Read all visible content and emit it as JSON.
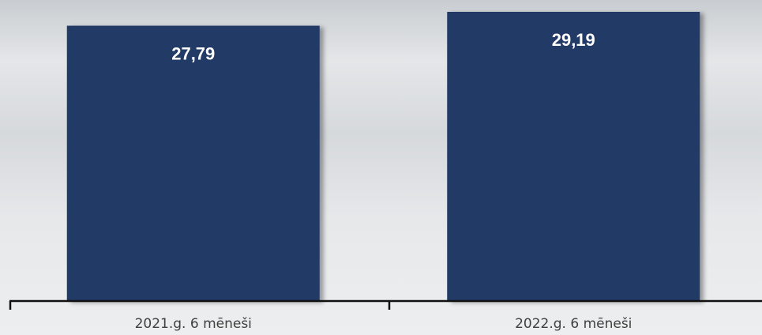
{
  "chart_data": {
    "type": "bar",
    "categories": [
      "2021.g. 6 mēneši",
      "2022.g. 6 mēneši"
    ],
    "values": [
      27.79,
      29.19
    ],
    "value_labels": [
      "27,79",
      "29,19"
    ],
    "color": "#223a66"
  }
}
